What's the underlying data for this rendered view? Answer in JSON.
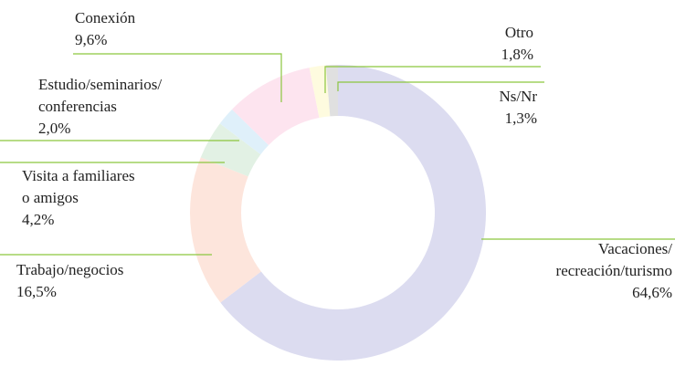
{
  "chart_data": {
    "type": "donut",
    "categories": [
      [
        "Vacaciones/",
        "recreación/turismo"
      ],
      [
        "Trabajo/negocios"
      ],
      [
        "Visita a familiares",
        "o amigos"
      ],
      [
        "Estudio/seminarios/",
        "conferencias"
      ],
      [
        "Conexión"
      ],
      [
        "Otro"
      ],
      [
        "Ns/Nr"
      ]
    ],
    "values": [
      64.6,
      16.5,
      4.2,
      2.0,
      9.6,
      1.8,
      1.3
    ],
    "value_labels": [
      "64,6%",
      "16,5%",
      "4,2%",
      "2,0%",
      "9,6%",
      "1,8%",
      "1,3%"
    ],
    "colors": [
      "#dcdcf0",
      "#fde5dc",
      "#e2f1e4",
      "#dff0fa",
      "#fde4ef",
      "#fefbdf",
      "#e0e0e0"
    ],
    "leader_color": "#8cc63f"
  }
}
